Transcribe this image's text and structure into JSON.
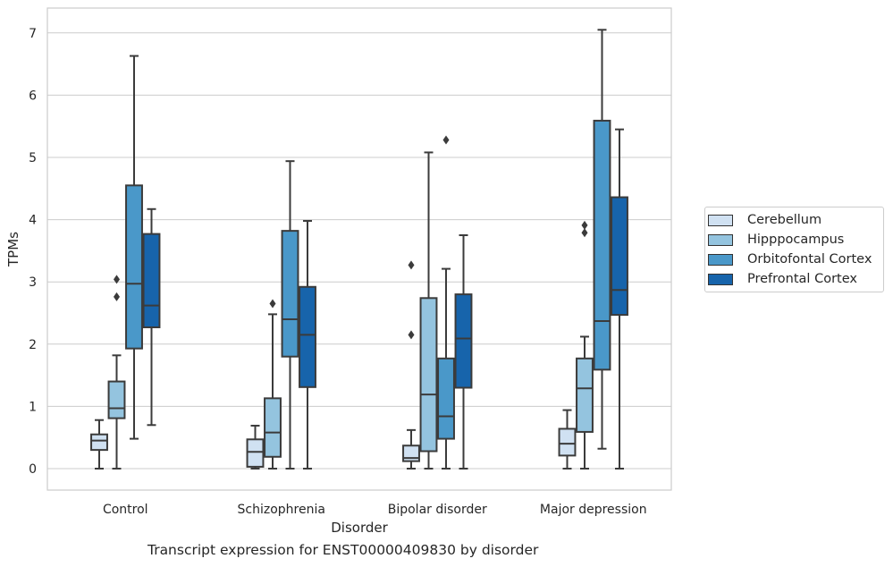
{
  "chart_data": {
    "type": "box",
    "title": "",
    "caption": "Transcript expression for ENST00000409830 by disorder",
    "xlabel": "Disorder",
    "ylabel": "TPMs",
    "ylim": [
      -0.35,
      7.4
    ],
    "yticks": [
      0,
      1,
      2,
      3,
      4,
      5,
      6,
      7
    ],
    "grid": "horizontal",
    "legend_position": "right",
    "categories": [
      "Control",
      "Schizophrenia",
      "Bipolar disorder",
      "Major depression"
    ],
    "series": [
      {
        "name": "Cerebellum",
        "color": "#d0e1f2",
        "boxes": [
          {
            "whisker_low": 0.0,
            "q1": 0.3,
            "median": 0.45,
            "q3": 0.55,
            "whisker_high": 0.78,
            "outliers": []
          },
          {
            "whisker_low": 0.0,
            "q1": 0.03,
            "median": 0.27,
            "q3": 0.47,
            "whisker_high": 0.69,
            "outliers": []
          },
          {
            "whisker_low": 0.0,
            "q1": 0.12,
            "median": 0.17,
            "q3": 0.37,
            "whisker_high": 0.62,
            "outliers": [
              2.15,
              3.27
            ]
          },
          {
            "whisker_low": 0.0,
            "q1": 0.21,
            "median": 0.4,
            "q3": 0.64,
            "whisker_high": 0.94,
            "outliers": []
          }
        ]
      },
      {
        "name": "Hipppocampus",
        "color": "#94c4df",
        "boxes": [
          {
            "whisker_low": 0.0,
            "q1": 0.81,
            "median": 0.97,
            "q3": 1.4,
            "whisker_high": 1.82,
            "outliers": [
              2.76,
              3.04
            ]
          },
          {
            "whisker_low": 0.0,
            "q1": 0.19,
            "median": 0.58,
            "q3": 1.13,
            "whisker_high": 2.48,
            "outliers": [
              2.65
            ]
          },
          {
            "whisker_low": 0.0,
            "q1": 0.28,
            "median": 1.19,
            "q3": 2.74,
            "whisker_high": 5.08,
            "outliers": []
          },
          {
            "whisker_low": 0.0,
            "q1": 0.59,
            "median": 1.29,
            "q3": 1.77,
            "whisker_high": 2.12,
            "outliers": [
              3.79,
              3.91
            ]
          }
        ]
      },
      {
        "name": "Orbitofontal Cortex",
        "color": "#4a98c9",
        "boxes": [
          {
            "whisker_low": 0.48,
            "q1": 1.93,
            "median": 2.97,
            "q3": 4.55,
            "whisker_high": 6.63,
            "outliers": []
          },
          {
            "whisker_low": 0.0,
            "q1": 1.8,
            "median": 2.4,
            "q3": 3.82,
            "whisker_high": 4.94,
            "outliers": []
          },
          {
            "whisker_low": 0.0,
            "q1": 0.48,
            "median": 0.84,
            "q3": 1.77,
            "whisker_high": 3.21,
            "outliers": [
              5.28
            ]
          },
          {
            "whisker_low": 0.32,
            "q1": 1.59,
            "median": 2.37,
            "q3": 5.59,
            "whisker_high": 7.05,
            "outliers": []
          }
        ]
      },
      {
        "name": "Prefrontal Cortex",
        "color": "#1764ab",
        "boxes": [
          {
            "whisker_low": 0.7,
            "q1": 2.27,
            "median": 2.62,
            "q3": 3.77,
            "whisker_high": 4.17,
            "outliers": []
          },
          {
            "whisker_low": 0.0,
            "q1": 1.31,
            "median": 2.15,
            "q3": 2.92,
            "whisker_high": 3.98,
            "outliers": []
          },
          {
            "whisker_low": 0.0,
            "q1": 1.3,
            "median": 2.09,
            "q3": 2.8,
            "whisker_high": 3.75,
            "outliers": []
          },
          {
            "whisker_low": 0.0,
            "q1": 2.47,
            "median": 2.87,
            "q3": 4.36,
            "whisker_high": 5.45,
            "outliers": []
          }
        ]
      }
    ]
  }
}
